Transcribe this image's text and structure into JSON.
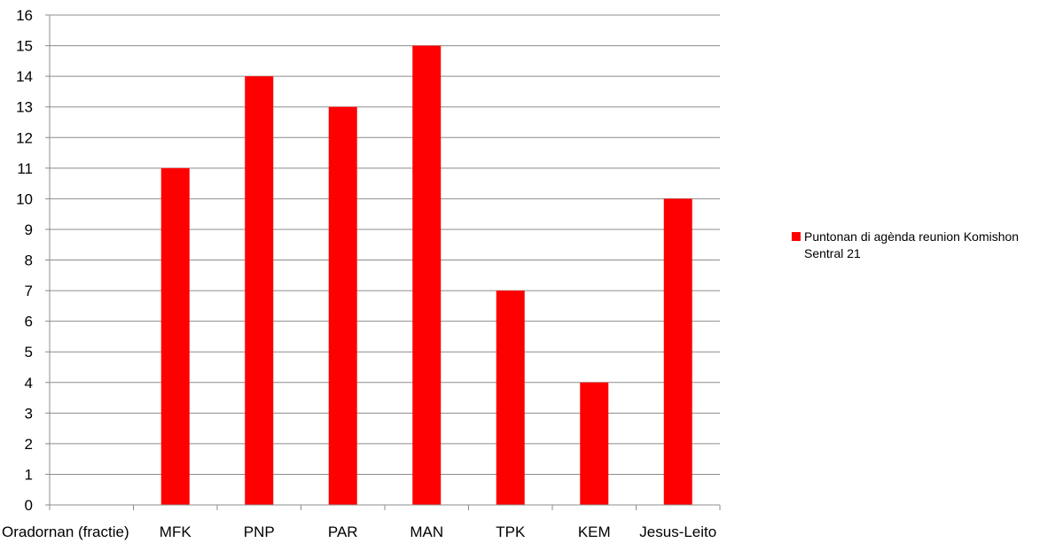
{
  "chart_data": {
    "type": "bar",
    "categories": [
      "Oradornan (fractie)",
      "MFK",
      "PNP",
      "PAR",
      "MAN",
      "TPK",
      "KEM",
      "Jesus-Leito"
    ],
    "series": [
      {
        "name": "Puntonan di agènda reunion Komishon Sentral 21",
        "values": [
          null,
          11,
          14,
          13,
          15,
          7,
          4,
          10
        ],
        "color": "#ff0000"
      }
    ],
    "ylim": [
      0,
      16
    ],
    "yticks": [
      0,
      1,
      2,
      3,
      4,
      5,
      6,
      7,
      8,
      9,
      10,
      11,
      12,
      13,
      14,
      15,
      16
    ],
    "grid": true,
    "legend_position": "right",
    "title": "",
    "xlabel": "",
    "ylabel": ""
  }
}
